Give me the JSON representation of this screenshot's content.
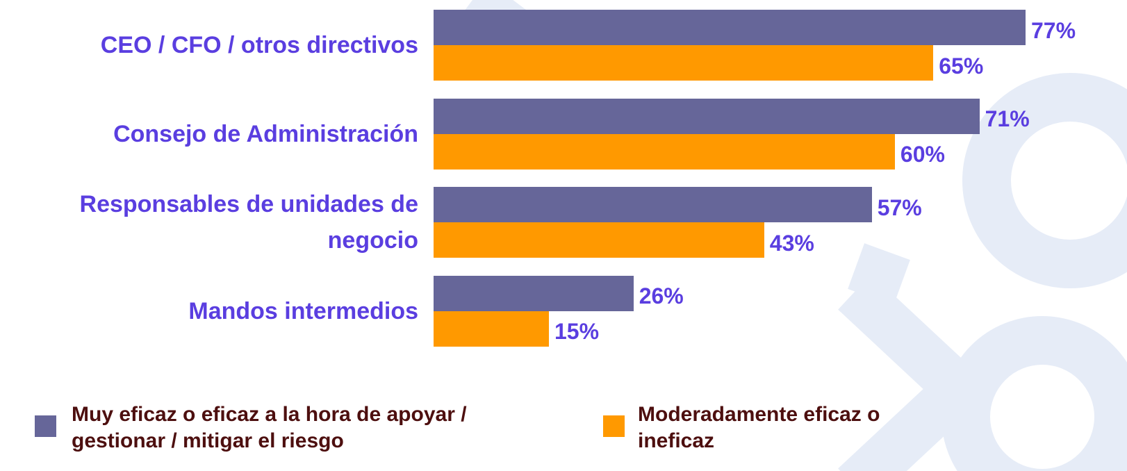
{
  "chart_data": {
    "type": "bar",
    "orientation": "horizontal",
    "categories": [
      "CEO / CFO / otros directivos",
      "Consejo de Administración",
      "Responsables de unidades de negocio",
      "Mandos intermedios"
    ],
    "series": [
      {
        "name": "Muy eficaz o eficaz a la hora de apoyar / gestionar / mitigar el riesgo",
        "color": "#666699",
        "values": [
          77,
          71,
          57,
          26
        ],
        "value_labels": [
          "77%",
          "71%",
          "57%",
          "26%"
        ]
      },
      {
        "name": "Moderadamente eficaz o ineficaz",
        "color": "#ff9900",
        "values": [
          65,
          60,
          43,
          15
        ],
        "value_labels": [
          "65%",
          "60%",
          "43%",
          "15%"
        ]
      }
    ],
    "legend": "bottom"
  }
}
